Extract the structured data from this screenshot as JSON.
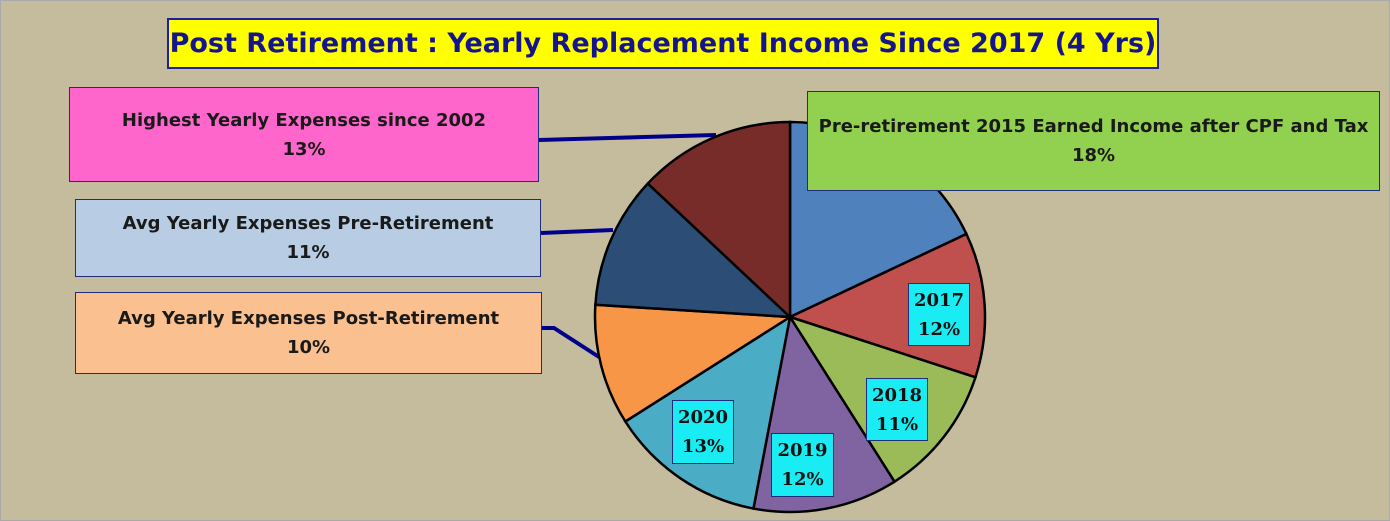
{
  "chart_data": {
    "type": "pie",
    "title": "Post Retirement : Yearly Replacement Income Since 2017 (4 Yrs)",
    "slices": [
      {
        "label": "Pre-retirement 2015 Earned Income after CPF and Tax",
        "value": 18,
        "display": "18%",
        "color": "#4f81bd"
      },
      {
        "label": "2017",
        "value": 12,
        "display": "12%",
        "color": "#c0504d"
      },
      {
        "label": "2018",
        "value": 11,
        "display": "11%",
        "color": "#9bbb59"
      },
      {
        "label": "2019",
        "value": 12,
        "display": "12%",
        "color": "#8064a2"
      },
      {
        "label": "2020",
        "value": 13,
        "display": "13%",
        "color": "#4bacc6"
      },
      {
        "label": "Avg Yearly Expenses Post-Retirement",
        "value": 10,
        "display": "10%",
        "color": "#f79646"
      },
      {
        "label": "Avg Yearly Expenses Pre-Retirement",
        "value": 11,
        "display": "11%",
        "color": "#2c4d75"
      },
      {
        "label": "Highest Yearly Expenses since 2002",
        "value": 13,
        "display": "13%",
        "color": "#772c2a"
      }
    ],
    "start_angle_deg": 0,
    "direction": "clockwise",
    "callout_colors": {
      "Pre-retirement 2015 Earned Income after CPF and Tax": "#92d050",
      "Highest Yearly Expenses since 2002": "#ff66cc",
      "Avg Yearly Expenses Pre-Retirement": "#b8cce4",
      "Avg Yearly Expenses Post-Retirement": "#fac090"
    },
    "label_box_color": "#19ecf2",
    "leader_line_color": "#00008b",
    "background_color": "#c4bc9c",
    "title_background": "#ffff00",
    "title_color": "#14148c"
  }
}
